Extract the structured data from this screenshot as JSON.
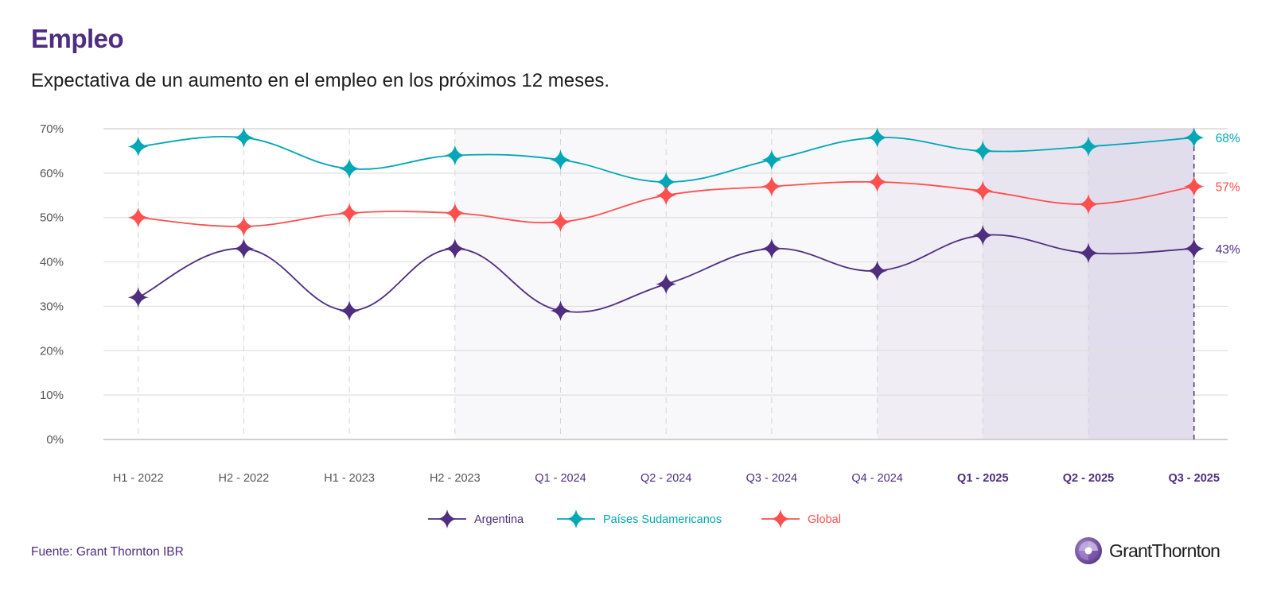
{
  "header": {
    "title": "Empleo",
    "subtitle": "Expectativa de un aumento en el empleo en los próximos 12 meses."
  },
  "footer": {
    "source": "Fuente: Grant Thornton IBR",
    "logo_text": "GrantThornton",
    "logo_icon": "grant-thornton-logo-icon"
  },
  "colors": {
    "brand_purple": "#4f2d7f",
    "teal": "#00a7b5",
    "red": "#ff4f4f",
    "axis_text": "#555555"
  },
  "chart_data": {
    "type": "line",
    "title": "Empleo",
    "subtitle": "Expectativa de un aumento en el empleo en los próximos 12 meses.",
    "xlabel": "",
    "ylabel": "",
    "ylim": [
      0,
      70
    ],
    "yticks": [
      0,
      10,
      20,
      30,
      40,
      50,
      60,
      70
    ],
    "ytick_labels": [
      "0%",
      "10%",
      "20%",
      "30%",
      "40%",
      "50%",
      "60%",
      "70%"
    ],
    "grid": true,
    "legend_position": "bottom-center",
    "categories": [
      "H1 - 2022",
      "H2 - 2022",
      "H1 - 2023",
      "H2 - 2023",
      "Q1 - 2024",
      "Q2 - 2024",
      "Q3 - 2024",
      "Q4 - 2024",
      "Q1 - 2025",
      "Q2 - 2025",
      "Q3 - 2025"
    ],
    "category_styles": [
      "plain",
      "plain",
      "plain",
      "plain",
      "accent",
      "accent",
      "accent",
      "accent",
      "accent-bold",
      "accent-bold",
      "accent-bold"
    ],
    "shaded_bands": [
      {
        "from": "H2 - 2023",
        "to": "Q4 - 2024",
        "color": "#f8f7fa"
      },
      {
        "from": "Q4 - 2024",
        "to": "Q1 - 2025",
        "color": "#f0edf4"
      },
      {
        "from": "Q1 - 2025",
        "to": "Q2 - 2025",
        "color": "#e9e5f0"
      },
      {
        "from": "Q2 - 2025",
        "to": "Q3 - 2025",
        "color": "#e2dded"
      }
    ],
    "highlight_category": "Q3 - 2025",
    "series": [
      {
        "name": "Argentina",
        "color": "#4f2d7f",
        "values": [
          32,
          43,
          29,
          43,
          29,
          35,
          43,
          38,
          46,
          42,
          43
        ],
        "end_label": "43%"
      },
      {
        "name": "Países Sudamericanos",
        "color": "#00a7b5",
        "values": [
          66,
          68,
          61,
          64,
          63,
          58,
          63,
          68,
          65,
          66,
          68
        ],
        "end_label": "68%"
      },
      {
        "name": "Global",
        "color": "#ff4f4f",
        "values": [
          50,
          48,
          51,
          51,
          49,
          55,
          57,
          58,
          56,
          53,
          57
        ],
        "end_label": "57%"
      }
    ]
  }
}
